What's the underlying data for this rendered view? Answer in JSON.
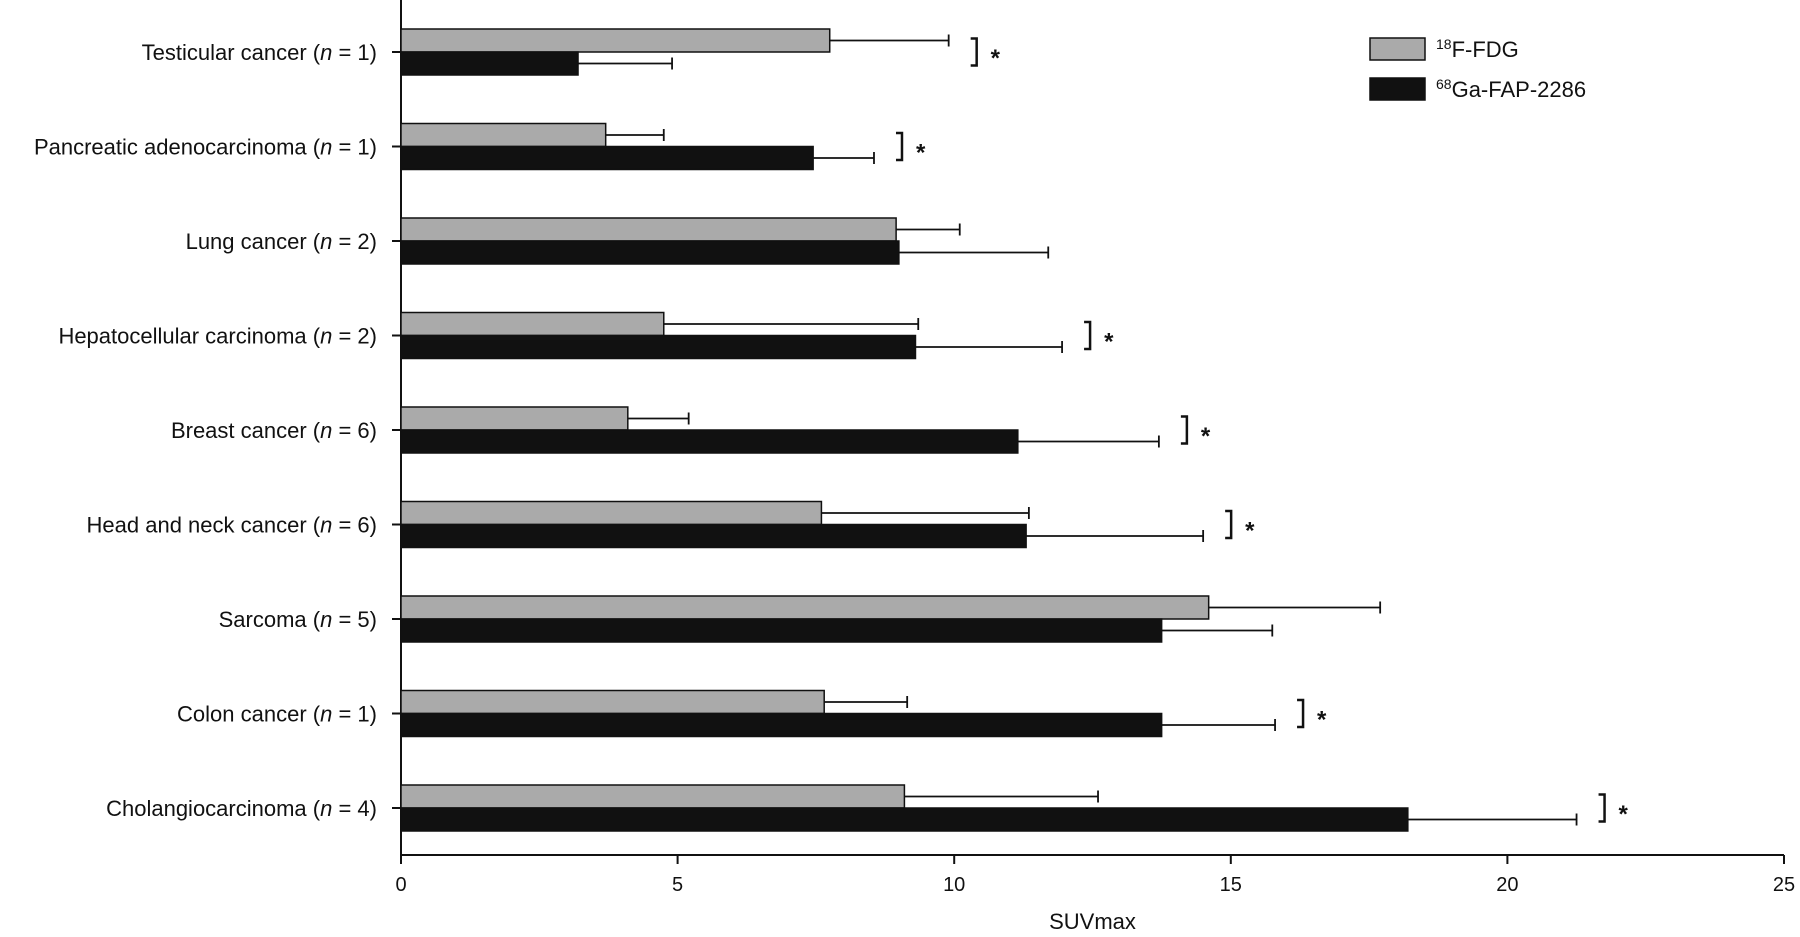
{
  "chart_data": {
    "type": "bar",
    "orientation": "horizontal",
    "categories": [
      {
        "name": "Testicular cancer",
        "n": "1"
      },
      {
        "name": "Pancreatic adenocarcinoma",
        "n": "1"
      },
      {
        "name": "Lung cancer",
        "n": "2"
      },
      {
        "name": "Hepatocellular carcinoma",
        "n": "2"
      },
      {
        "name": "Breast cancer",
        "n": "6"
      },
      {
        "name": "Head and neck cancer",
        "n": "6"
      },
      {
        "name": "Sarcoma",
        "n": "5"
      },
      {
        "name": "Colon cancer",
        "n": "1"
      },
      {
        "name": "Cholangiocarcinoma",
        "n": "4"
      }
    ],
    "n_label": "n",
    "series": [
      {
        "name_sup": "18",
        "name_main": "F-FDG",
        "color": "#aaaaaa",
        "values": [
          7.75,
          3.7,
          8.95,
          4.75,
          4.1,
          7.6,
          14.6,
          7.65,
          9.1
        ],
        "error_plus": [
          2.15,
          1.05,
          1.15,
          4.6,
          1.1,
          3.75,
          3.1,
          1.5,
          3.5
        ]
      },
      {
        "name_sup": "68",
        "name_main": "Ga-FAP-2286",
        "color": "#111111",
        "values": [
          3.2,
          7.45,
          9.0,
          9.3,
          11.15,
          11.3,
          13.75,
          13.75,
          18.2
        ],
        "error_plus": [
          1.7,
          1.1,
          2.7,
          2.65,
          2.55,
          3.2,
          2.0,
          2.05,
          3.05
        ]
      }
    ],
    "significance": [
      "*",
      "*",
      "",
      "*",
      "*",
      "*",
      "",
      "*",
      "*"
    ],
    "xlabel": "SUVmax",
    "ylabel": "",
    "xlim": [
      0,
      25
    ],
    "xticks": [
      0,
      5,
      10,
      15,
      20,
      25
    ],
    "grid": false,
    "legend_position": "top-right"
  }
}
